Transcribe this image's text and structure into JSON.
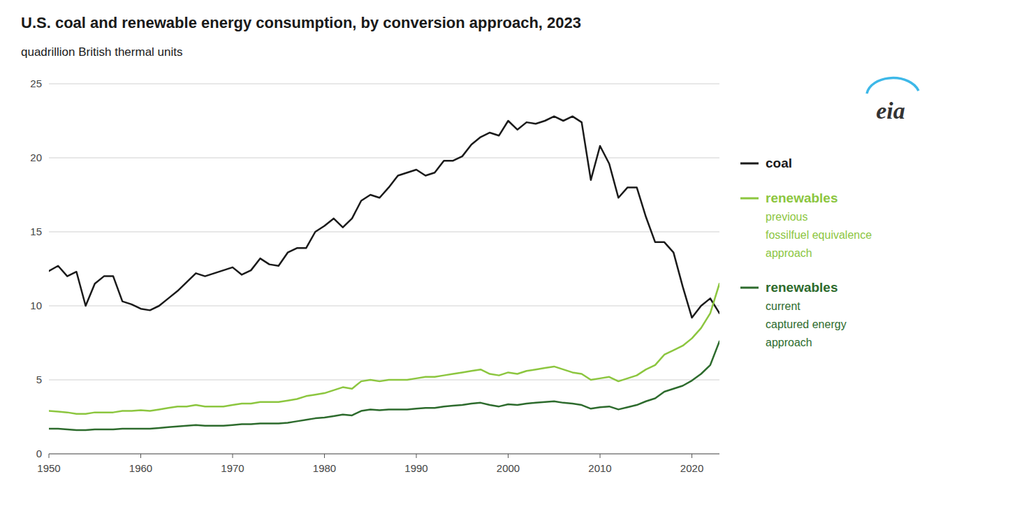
{
  "chart_data": {
    "type": "line",
    "title": "U.S. coal and renewable energy consumption, by conversion approach, 2023",
    "subtitle": "quadrillion British thermal units",
    "x": [
      1950,
      1951,
      1952,
      1953,
      1954,
      1955,
      1956,
      1957,
      1958,
      1959,
      1960,
      1961,
      1962,
      1963,
      1964,
      1965,
      1966,
      1967,
      1968,
      1969,
      1970,
      1971,
      1972,
      1973,
      1974,
      1975,
      1976,
      1977,
      1978,
      1979,
      1980,
      1981,
      1982,
      1983,
      1984,
      1985,
      1986,
      1987,
      1988,
      1989,
      1990,
      1991,
      1992,
      1993,
      1994,
      1995,
      1996,
      1997,
      1998,
      1999,
      2000,
      2001,
      2002,
      2003,
      2004,
      2005,
      2006,
      2007,
      2008,
      2009,
      2010,
      2011,
      2012,
      2013,
      2014,
      2015,
      2016,
      2017,
      2018,
      2019,
      2020,
      2021,
      2022,
      2023
    ],
    "series": [
      {
        "name": "coal",
        "color": "#1a1a1a",
        "values": [
          12.35,
          12.7,
          12.0,
          12.3,
          10.0,
          11.5,
          12.0,
          12.0,
          10.3,
          10.1,
          9.8,
          9.7,
          10.0,
          10.5,
          11.0,
          11.6,
          12.2,
          12.0,
          12.2,
          12.4,
          12.6,
          12.1,
          12.4,
          13.2,
          12.8,
          12.7,
          13.6,
          13.9,
          13.9,
          15.0,
          15.4,
          15.9,
          15.3,
          15.9,
          17.1,
          17.5,
          17.3,
          18.0,
          18.8,
          19.0,
          19.2,
          18.8,
          19.0,
          19.8,
          19.8,
          20.1,
          20.9,
          21.4,
          21.7,
          21.5,
          22.5,
          21.9,
          22.4,
          22.3,
          22.5,
          22.8,
          22.5,
          22.8,
          22.4,
          18.5,
          20.8,
          19.6,
          17.3,
          18.0,
          18.0,
          16.0,
          14.3,
          14.3,
          13.6,
          11.3,
          9.2,
          10.0,
          10.5,
          9.5
        ]
      },
      {
        "name": "renewables",
        "color": "#8cc63f",
        "annotations": [
          "previous",
          "fossilfuel equivalence",
          "approach"
        ],
        "values": [
          2.9,
          2.85,
          2.8,
          2.7,
          2.7,
          2.8,
          2.8,
          2.8,
          2.9,
          2.9,
          2.95,
          2.9,
          3.0,
          3.1,
          3.2,
          3.2,
          3.3,
          3.2,
          3.2,
          3.2,
          3.3,
          3.4,
          3.4,
          3.5,
          3.5,
          3.5,
          3.6,
          3.7,
          3.9,
          4.0,
          4.1,
          4.3,
          4.5,
          4.4,
          4.9,
          5.0,
          4.9,
          5.0,
          5.0,
          5.0,
          5.1,
          5.2,
          5.2,
          5.3,
          5.4,
          5.5,
          5.6,
          5.7,
          5.4,
          5.3,
          5.5,
          5.4,
          5.6,
          5.7,
          5.8,
          5.9,
          5.7,
          5.5,
          5.4,
          5.0,
          5.1,
          5.2,
          4.9,
          5.1,
          5.3,
          5.7,
          6.0,
          6.7,
          7.0,
          7.3,
          7.8,
          8.5,
          9.5,
          11.5
        ]
      },
      {
        "name": "renewables",
        "color": "#2d6b2d",
        "annotations": [
          "current",
          "captured energy",
          "approach"
        ],
        "values": [
          1.7,
          1.7,
          1.65,
          1.6,
          1.6,
          1.65,
          1.65,
          1.65,
          1.7,
          1.7,
          1.7,
          1.7,
          1.75,
          1.8,
          1.85,
          1.9,
          1.95,
          1.9,
          1.9,
          1.9,
          1.95,
          2.0,
          2.0,
          2.05,
          2.05,
          2.05,
          2.1,
          2.2,
          2.3,
          2.4,
          2.45,
          2.55,
          2.65,
          2.6,
          2.9,
          3.0,
          2.95,
          3.0,
          3.0,
          3.0,
          3.05,
          3.1,
          3.1,
          3.2,
          3.25,
          3.3,
          3.4,
          3.45,
          3.3,
          3.2,
          3.35,
          3.3,
          3.4,
          3.45,
          3.5,
          3.55,
          3.45,
          3.4,
          3.3,
          3.05,
          3.15,
          3.2,
          3.0,
          3.15,
          3.3,
          3.55,
          3.75,
          4.2,
          4.4,
          4.6,
          4.95,
          5.4,
          6.0,
          7.6
        ]
      }
    ],
    "annotations": [
      {
        "text": "eia",
        "color": "#333333",
        "line_color": "#3db8e8"
      }
    ],
    "xlim": [
      1950,
      2023
    ],
    "xticks": [
      1950,
      1960,
      1970,
      1980,
      1990,
      2000,
      2010,
      2020
    ],
    "ylim": [
      0,
      25
    ],
    "yticks": [
      0,
      5,
      10,
      15,
      20,
      25
    ],
    "grid": "y",
    "legend": "right"
  }
}
